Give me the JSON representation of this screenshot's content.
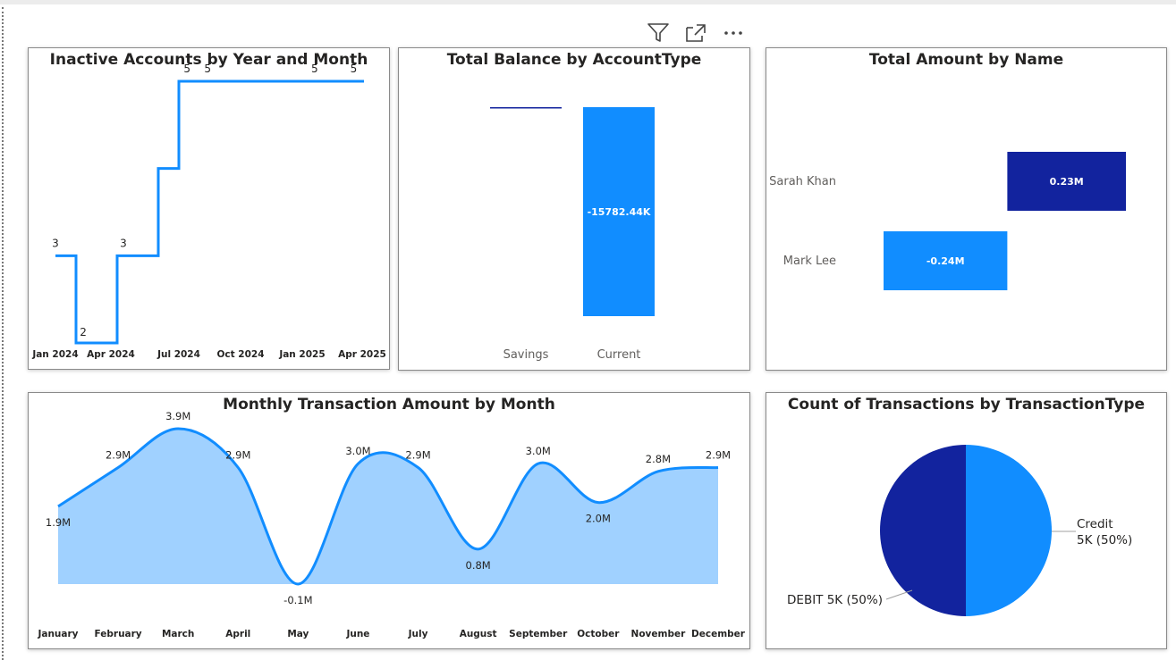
{
  "visual_header": {
    "icons": [
      "filter-icon",
      "focus-mode-icon",
      "more-options-icon"
    ]
  },
  "colors": {
    "dark_blue": "#12239E",
    "bright_blue": "#118DFF",
    "light_area": "#A0D1FF"
  },
  "chart_data": [
    {
      "type": "line",
      "title": "Inactive Accounts by Year and Month",
      "x_ticks": [
        "Jan 2024",
        "Apr 2024",
        "Jul 2024",
        "Oct 2024",
        "Jan 2025",
        "Apr 2025"
      ],
      "step": true,
      "points": [
        {
          "x": 0,
          "y": 3
        },
        {
          "x": 1,
          "y": 2
        },
        {
          "x": 2,
          "y": 2
        },
        {
          "x": 3,
          "y": 3
        },
        {
          "x": 4,
          "y": 3
        },
        {
          "x": 5,
          "y": 4
        },
        {
          "x": 6,
          "y": 5
        },
        {
          "x": 15,
          "y": 5
        }
      ],
      "data_labels": [
        {
          "x": 0,
          "text": "3"
        },
        {
          "x": 1.35,
          "text": "2"
        },
        {
          "x": 3.3,
          "text": "3"
        },
        {
          "x": 6.4,
          "text": "5"
        },
        {
          "x": 7.4,
          "text": "5"
        },
        {
          "x": 12.6,
          "text": "5"
        },
        {
          "x": 14.5,
          "text": "5"
        }
      ],
      "ylim": [
        2,
        5
      ],
      "grid": false
    },
    {
      "type": "bar",
      "title": "Total Balance by AccountType",
      "categories": [
        "Savings",
        "Current"
      ],
      "values": [
        0,
        -15782.44
      ],
      "data_labels": [
        "",
        "-15782.44K"
      ],
      "colors": [
        "#12239E",
        "#118DFF"
      ],
      "unit": "K",
      "grid": false
    },
    {
      "type": "bar",
      "orientation": "horizontal-waterfall",
      "title": "Total Amount by Name",
      "categories": [
        "Sarah Khan",
        "Mark Lee"
      ],
      "values": [
        0.23,
        -0.24
      ],
      "data_labels": [
        "0.23M",
        "-0.24M"
      ],
      "colors": [
        "#12239E",
        "#118DFF"
      ],
      "unit": "M",
      "xlim": [
        -0.24,
        0.23
      ]
    },
    {
      "type": "area",
      "title": "Monthly Transaction Amount by Month",
      "categories": [
        "January",
        "February",
        "March",
        "April",
        "May",
        "June",
        "July",
        "August",
        "September",
        "October",
        "November",
        "December"
      ],
      "values": [
        1.9,
        2.9,
        3.9,
        2.9,
        -0.1,
        3.0,
        2.9,
        0.8,
        3.0,
        2.0,
        2.8,
        2.9
      ],
      "data_labels": [
        "1.9M",
        "2.9M",
        "3.9M",
        "2.9M",
        "-0.1M",
        "3.0M",
        "2.9M",
        "0.8M",
        "3.0M",
        "2.0M",
        "2.8M",
        "2.9M"
      ],
      "unit": "M",
      "ylim": [
        -0.1,
        3.9
      ],
      "grid": false
    },
    {
      "type": "pie",
      "title": "Count of Transactions by TransactionType",
      "slices": [
        {
          "label": "Credit",
          "value": 5000,
          "display": "5K (50%)",
          "color": "#118DFF"
        },
        {
          "label": "DEBIT",
          "value": 5000,
          "display": "5K (50%)",
          "color": "#12239E"
        }
      ],
      "label_texts": [
        "Credit",
        "5K (50%)",
        "DEBIT 5K (50%)"
      ]
    }
  ]
}
